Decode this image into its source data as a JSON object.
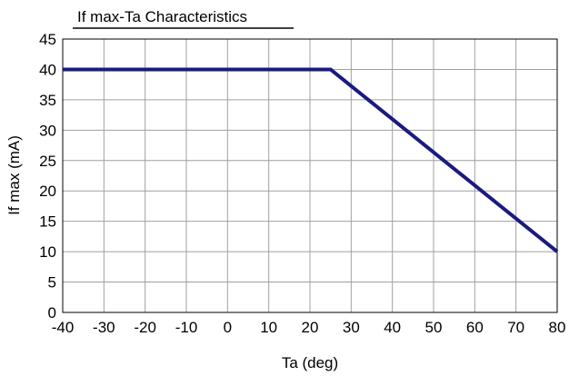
{
  "chart_data": {
    "type": "line",
    "title": "If max-Ta Characteristics",
    "xlabel": "Ta (deg)",
    "ylabel": "If max (mA)",
    "xlim": [
      -40,
      80
    ],
    "ylim": [
      0,
      45
    ],
    "x_ticks": [
      -40,
      -30,
      -20,
      -10,
      0,
      10,
      20,
      30,
      40,
      50,
      60,
      70,
      80
    ],
    "y_ticks": [
      0,
      5,
      10,
      15,
      20,
      25,
      30,
      35,
      40,
      45
    ],
    "grid": true,
    "line_color": "#1a1a80",
    "series": [
      {
        "x": [
          -40,
          25,
          80
        ],
        "y": [
          40,
          40,
          10
        ]
      }
    ]
  }
}
